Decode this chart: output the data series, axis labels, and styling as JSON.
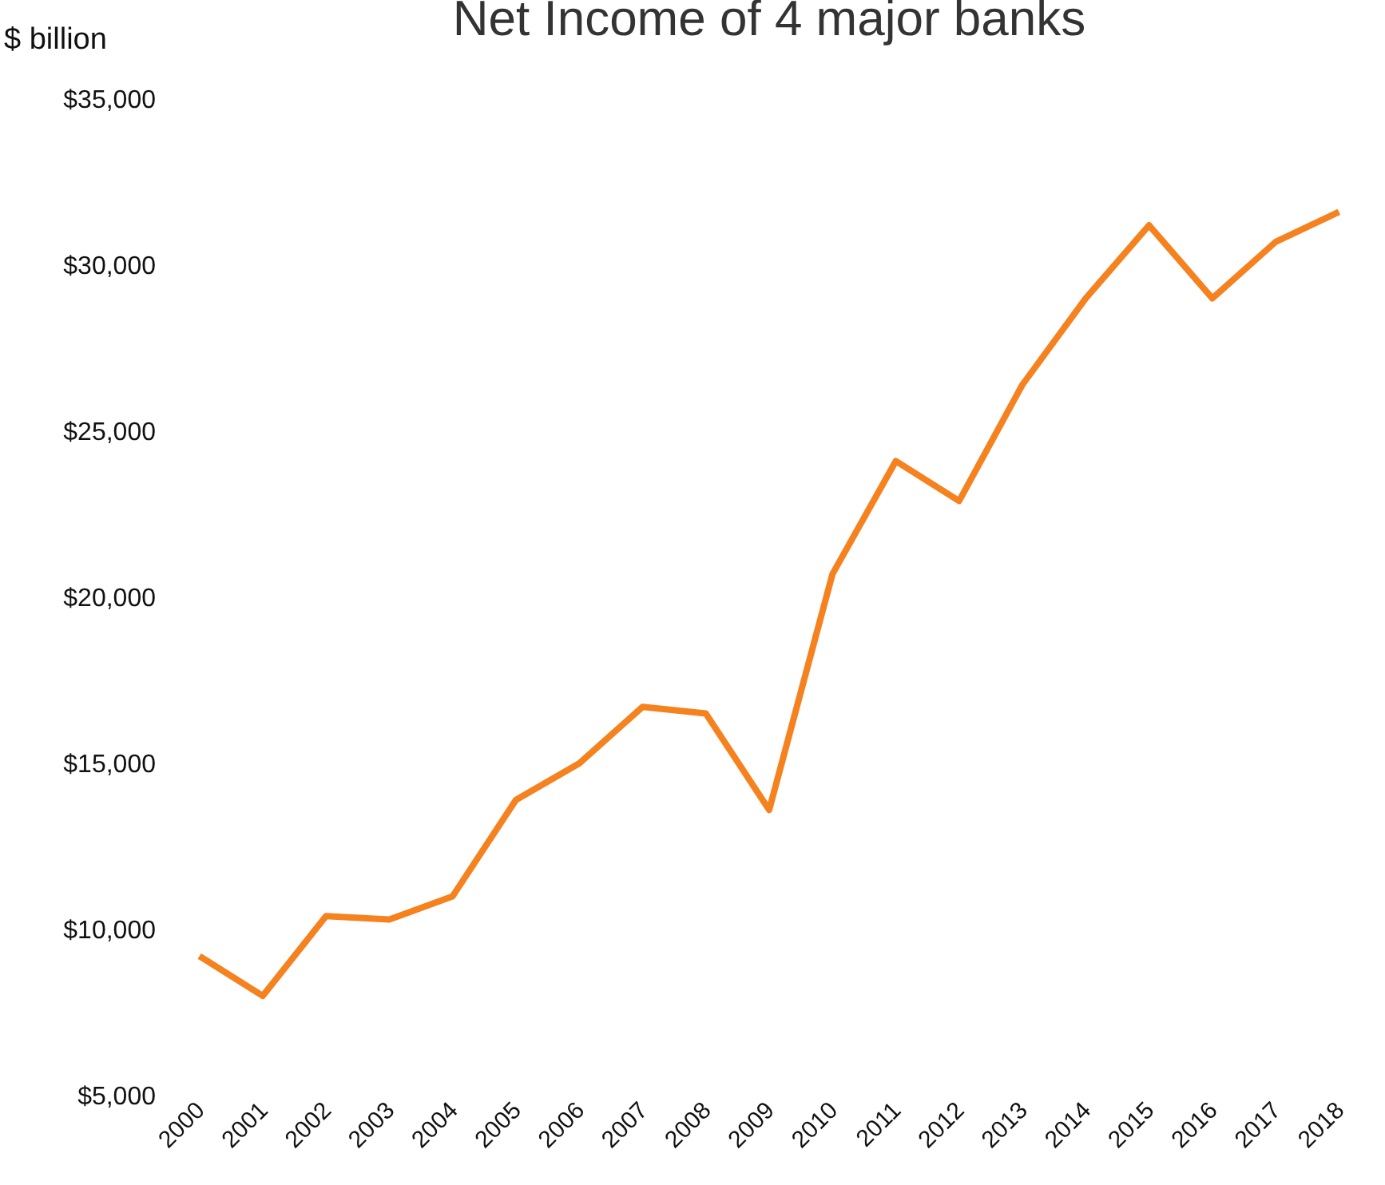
{
  "chart_data": {
    "type": "line",
    "title": "Net Income of 4 major banks",
    "ylabel": "$ billion",
    "categories": [
      "2000",
      "2001",
      "2002",
      "2003",
      "2004",
      "2005",
      "2006",
      "2007",
      "2008",
      "2009",
      "2010",
      "2011",
      "2012",
      "2013",
      "2014",
      "2015",
      "2016",
      "2017",
      "2018"
    ],
    "series": [
      {
        "color": "#f5821f",
        "values": [
          9200,
          8000,
          10400,
          10300,
          11000,
          13900,
          15000,
          16700,
          16500,
          13600,
          20700,
          24100,
          22900,
          26400,
          29000,
          31200,
          29000,
          30700,
          31600
        ]
      }
    ],
    "ylim": [
      5000,
      35000
    ],
    "yticks": [
      {
        "value": 5000,
        "label": "$5,000"
      },
      {
        "value": 10000,
        "label": "$10,000"
      },
      {
        "value": 15000,
        "label": "$15,000"
      },
      {
        "value": 20000,
        "label": "$20,000"
      },
      {
        "value": 25000,
        "label": "$25,000"
      },
      {
        "value": 30000,
        "label": "$30,000"
      },
      {
        "value": 35000,
        "label": "$35,000"
      }
    ],
    "grid": false,
    "legend": false,
    "marker": "none",
    "line_style": "solid"
  }
}
